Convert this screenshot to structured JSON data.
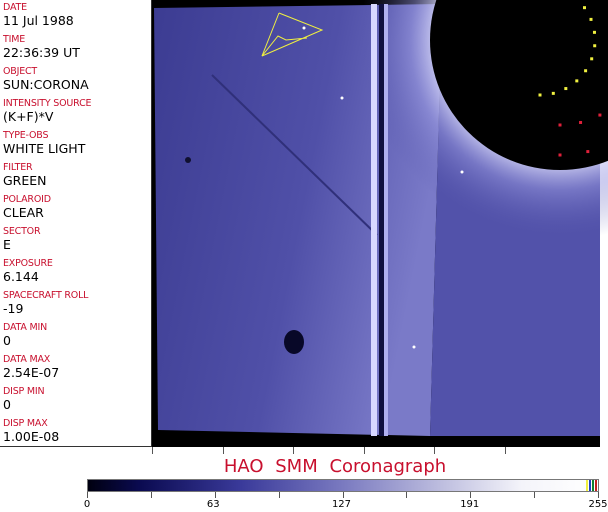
{
  "fields": [
    {
      "label": "DATE",
      "value": "11 Jul 1988"
    },
    {
      "label": "TIME",
      "value": "22:36:39 UT"
    },
    {
      "label": "OBJECT",
      "value": "SUN:CORONA"
    },
    {
      "label": "INTENSITY SOURCE",
      "value": "(K+F)*V"
    },
    {
      "label": "TYPE-OBS",
      "value": "WHITE LIGHT"
    },
    {
      "label": "FILTER",
      "value": "GREEN"
    },
    {
      "label": "POLAROID",
      "value": "CLEAR"
    },
    {
      "label": "SECTOR",
      "value": "E"
    },
    {
      "label": "EXPOSURE",
      "value": "6.144"
    },
    {
      "label": "SPACECRAFT ROLL",
      "value": "-19"
    },
    {
      "label": "DATA MIN",
      "value": "0"
    },
    {
      "label": "DATA MAX",
      "value": "2.54E-07"
    },
    {
      "label": "DISP MIN",
      "value": "0"
    },
    {
      "label": "DISP MAX",
      "value": "1.00E-08"
    }
  ],
  "title": "HAO  SMM Coronagraph",
  "colorbar": {
    "ticks": [
      "0",
      "63",
      "127",
      "191",
      "255"
    ],
    "min": 0,
    "max": 255
  },
  "colors": {
    "label": "#c8102e",
    "corona": "#5a5ab8",
    "overlay_red": "#e0203a",
    "overlay_yellow": "#f0f040"
  }
}
